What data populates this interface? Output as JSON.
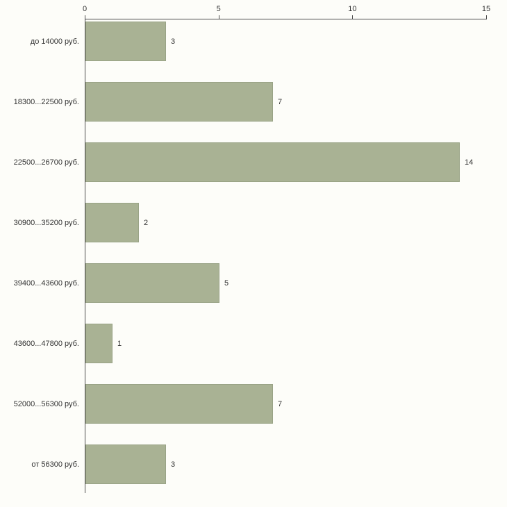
{
  "chart_data": {
    "type": "bar",
    "orientation": "horizontal",
    "title": "",
    "xlabel": "",
    "ylabel": "",
    "categories": [
      "до 14000 руб.",
      "18300...22500 руб.",
      "22500...26700 руб.",
      "30900...35200 руб.",
      "39400...43600 руб.",
      "43600...47800 руб.",
      "52000...56300 руб.",
      "от 56300 руб."
    ],
    "values": [
      3,
      7,
      14,
      2,
      5,
      1,
      7,
      3
    ],
    "xlim": [
      0,
      15
    ],
    "x_ticks": [
      0,
      5,
      10,
      15
    ],
    "grid": false,
    "legend": false,
    "bar_color": "#a9b294",
    "bar_border_color": "#99a386",
    "axis_color": "#4a4a4a",
    "text_color": "#333333",
    "background": "#fdfdf9"
  }
}
